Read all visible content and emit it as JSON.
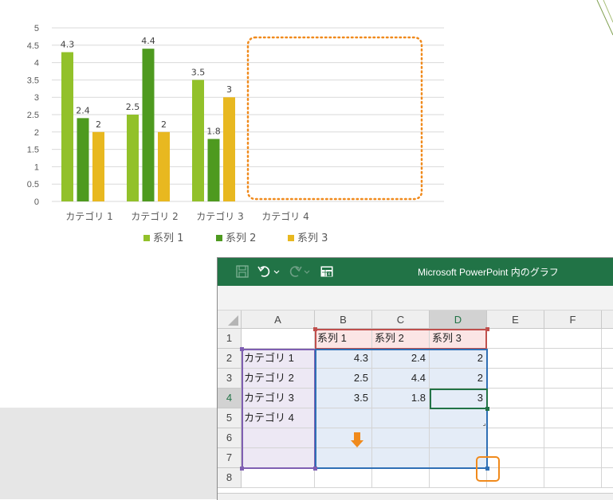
{
  "chart_data": {
    "type": "bar",
    "categories": [
      "カテゴリ 1",
      "カテゴリ 2",
      "カテゴリ 3",
      "カテゴリ 4"
    ],
    "series": [
      {
        "name": "系列 1",
        "values": [
          4.3,
          2.5,
          3.5,
          null
        ],
        "color": "#92c12a"
      },
      {
        "name": "系列 2",
        "values": [
          2.4,
          4.4,
          1.8,
          null
        ],
        "color": "#4e9a1f"
      },
      {
        "name": "系列 3",
        "values": [
          2,
          2,
          3,
          null
        ],
        "color": "#e8b820"
      }
    ],
    "yticks": [
      "0",
      "0.5",
      "1",
      "1.5",
      "2",
      "2.5",
      "3",
      "3.5",
      "4",
      "4.5",
      "5"
    ],
    "ylim": [
      0,
      5
    ],
    "grid": true,
    "legend": "bottom",
    "data_labels": true,
    "empty_category_highlight": {
      "category": "カテゴリ 4",
      "style": "orange dotted outline"
    }
  },
  "excel": {
    "title": "Microsoft PowerPoint 内のグラフ",
    "toolbar": {
      "save_icon": "save-icon",
      "undo_icon": "undo-icon",
      "redo_icon": "redo-icon",
      "edit_data_icon": "edit-data-in-excel-icon"
    },
    "columns": [
      "A",
      "B",
      "C",
      "D",
      "E",
      "F"
    ],
    "active_column": "D",
    "rows": [
      "1",
      "2",
      "3",
      "4",
      "5",
      "6",
      "7",
      "8"
    ],
    "active_row": "4",
    "cells": {
      "B1": "系列 1",
      "C1": "系列 2",
      "D1": "系列 3",
      "A2": "カテゴリ 1",
      "B2": "4.3",
      "C2": "2.4",
      "D2": "2",
      "A3": "カテゴリ 2",
      "B3": "2.5",
      "C3": "4.4",
      "D3": "2",
      "A4": "カテゴリ 3",
      "B4": "3.5",
      "C4": "1.8",
      "D4": "3",
      "A5": "カテゴリ 4"
    },
    "colors": {
      "titlebar": "#217346",
      "series_range": "#c0504d",
      "category_range": "#7f5fb2",
      "data_range": "#2f6fb5",
      "annotation": "#f08a1c"
    },
    "annotation": {
      "icon": "down-arrow-icon",
      "target": "resize-handle-highlight"
    }
  }
}
